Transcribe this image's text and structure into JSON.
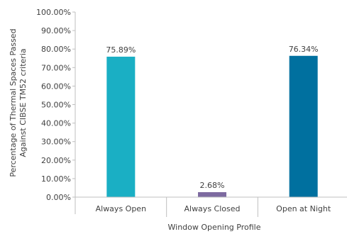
{
  "chart_data": {
    "type": "bar",
    "title": "",
    "xlabel": "Window Opening Profile",
    "ylabel_lines": [
      "Percentage of Thermal Spaces Passed",
      "Against CIBSE TM52 criteria"
    ],
    "categories": [
      "Always Open",
      "Always Closed",
      "Open at Night"
    ],
    "values": [
      75.89,
      2.68,
      76.34
    ],
    "data_labels": [
      "75.89%",
      "2.68%",
      "76.34%"
    ],
    "colors": [
      "#1aafc4",
      "#7d6aa0",
      "#00709f"
    ],
    "ylim": [
      0,
      100
    ],
    "yticks": [
      "0.00%",
      "10.00%",
      "20.00%",
      "30.00%",
      "40.00%",
      "50.00%",
      "60.00%",
      "70.00%",
      "80.00%",
      "90.00%",
      "100.00%"
    ],
    "grid": false,
    "legend": "none"
  }
}
